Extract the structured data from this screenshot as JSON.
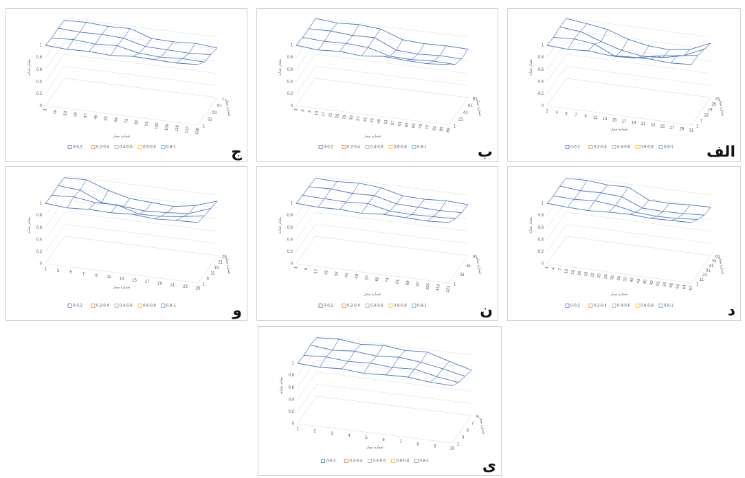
{
  "chart_data": [
    {
      "type": "surface",
      "label": "الف",
      "x_label": "شماره بیمار",
      "y_label": "مقدار تشابه",
      "z_label": "شماره بیمار",
      "legend": [
        "0-0.2",
        "0.2-0.4",
        "0.4-0.6",
        "0.6-0.8",
        "0.8-1"
      ],
      "legend_colors": [
        "#4472c4",
        "#ed7d31",
        "#a5a5a5",
        "#ffc000",
        "#5b9bd5"
      ],
      "color": "#4472c4",
      "ylim": [
        0,
        1
      ],
      "yticks": [
        0,
        0.2,
        0.4,
        0.6,
        0.8,
        1
      ],
      "xticks": [
        1,
        3,
        5,
        7,
        9,
        11,
        13,
        15,
        17,
        19,
        21,
        23,
        25,
        27,
        29,
        31
      ],
      "zticks": [
        1,
        7,
        13,
        19,
        25,
        31
      ],
      "surface": [
        [
          1,
          0.98,
          1,
          0.97,
          0.99,
          1,
          0.98,
          1
        ],
        [
          0.98,
          1,
          0.96,
          0.8,
          0.82,
          0.9,
          0.95,
          1
        ],
        [
          1,
          0.97,
          0.85,
          0.75,
          0.7,
          0.72,
          0.8,
          0.95
        ],
        [
          0.99,
          0.95,
          0.9,
          0.78,
          0.72,
          0.7,
          0.75,
          0.9
        ]
      ]
    },
    {
      "type": "surface",
      "label": "ب",
      "x_label": "شماره بیمار",
      "y_label": "مقدار تشابه",
      "z_label": "شماره بیمار",
      "legend": [
        "0-0.2",
        "0.2-0.4",
        "0.4-0.6",
        "0.6-0.8",
        "0.8-1"
      ],
      "legend_colors": [
        "#4472c4",
        "#ed7d31",
        "#a5a5a5",
        "#ffc000",
        "#5b9bd5"
      ],
      "color": "#4472c4",
      "ylim": [
        0,
        1
      ],
      "yticks": [
        0,
        0.2,
        0.4,
        0.6,
        0.8,
        1
      ],
      "xticks": [
        1,
        5,
        9,
        13,
        17,
        21,
        25,
        29,
        33,
        37,
        41,
        45,
        49,
        53,
        57,
        61,
        65,
        69,
        73,
        77,
        81,
        85,
        89
      ],
      "zticks": [
        1,
        21,
        41,
        61,
        81
      ],
      "surface": [
        [
          1,
          0.97,
          0.99,
          0.96,
          1,
          0.98,
          0.97,
          1
        ],
        [
          0.98,
          0.96,
          0.97,
          0.95,
          0.85,
          0.84,
          0.86,
          0.85
        ],
        [
          0.97,
          0.98,
          0.95,
          0.96,
          0.8,
          0.78,
          0.8,
          0.79
        ],
        [
          0.99,
          0.96,
          0.98,
          0.95,
          0.82,
          0.8,
          0.81,
          0.8
        ]
      ]
    },
    {
      "type": "surface",
      "label": "ج",
      "x_label": "شماره بیمار",
      "y_label": "مقدار تشابه",
      "z_label": "شماره بیمار",
      "legend": [
        "0-0.2",
        "0.2-0.4",
        "0.4-0.6",
        "0.6-0.8",
        "0.8-1"
      ],
      "legend_colors": [
        "#4472c4",
        "#ed7d31",
        "#a5a5a5",
        "#ffc000",
        "#5b9bd5"
      ],
      "color": "#4472c4",
      "ylim": [
        0,
        1
      ],
      "yticks": [
        0,
        0.2,
        0.4,
        0.6,
        0.8,
        1
      ],
      "xticks": [
        1,
        10,
        19,
        28,
        37,
        46,
        55,
        64,
        73,
        82,
        91,
        100,
        109,
        118,
        127,
        136
      ],
      "zticks": [
        1,
        31,
        61,
        91,
        {
          "value": 121,
          "label": "1..."
        }
      ],
      "surface": [
        [
          1,
          0.98,
          0.99,
          0.97,
          1,
          0.99,
          0.98,
          1
        ],
        [
          0.97,
          0.99,
          0.96,
          0.98,
          0.9,
          0.88,
          0.9,
          0.89
        ],
        [
          0.98,
          0.96,
          0.97,
          0.95,
          0.86,
          0.85,
          0.84,
          0.86
        ],
        [
          0.96,
          0.97,
          0.95,
          0.96,
          0.84,
          0.83,
          0.85,
          0.82
        ]
      ]
    },
    {
      "type": "surface",
      "label": "د",
      "x_label": "شماره بیمار",
      "y_label": "مقدار تشابه",
      "z_label": "شماره بیمار",
      "legend": [
        "0-0.2",
        "0.2-0.4",
        "0.4-0.6",
        "0.6-0.8",
        "0.8-1"
      ],
      "legend_colors": [
        "#4472c4",
        "#ed7d31",
        "#a5a5a5",
        "#ffc000",
        "#5b9bd5"
      ],
      "color": "#4472c4",
      "ylim": [
        0,
        1
      ],
      "yticks": [
        0,
        0.2,
        0.4,
        0.6,
        0.8,
        1
      ],
      "xticks": [
        1,
        4,
        7,
        10,
        13,
        16,
        19,
        22,
        25,
        28,
        31,
        34,
        37,
        40,
        43,
        46,
        49,
        52,
        55,
        58,
        61,
        64,
        67
      ],
      "zticks": [
        1,
        11,
        21,
        31,
        41,
        51,
        61
      ],
      "surface": [
        [
          1,
          0.98,
          0.97,
          0.99,
          1,
          0.98,
          0.99,
          1
        ],
        [
          0.97,
          0.96,
          0.98,
          0.95,
          0.88,
          0.86,
          0.87,
          0.9
        ],
        [
          0.98,
          0.95,
          0.96,
          0.94,
          0.8,
          0.79,
          0.8,
          0.82
        ],
        [
          0.96,
          0.97,
          0.94,
          0.95,
          0.78,
          0.77,
          0.79,
          0.8
        ]
      ]
    },
    {
      "type": "surface",
      "label": "ن",
      "x_label": "شماره بیمار",
      "y_label": "مقدار تشابه",
      "z_label": "شماره بیمار",
      "legend": [
        "0-0.2",
        "0.2-0.4",
        "0.4-0.6",
        "0.6-0.8",
        "0.8-1"
      ],
      "legend_colors": [
        "#4472c4",
        "#ed7d31",
        "#a5a5a5",
        "#ffc000",
        "#5b9bd5"
      ],
      "color": "#4472c4",
      "ylim": [
        0,
        1
      ],
      "yticks": [
        0,
        0.2,
        0.4,
        0.6,
        0.8,
        1
      ],
      "xticks": [
        1,
        9,
        17,
        25,
        33,
        41,
        49,
        57,
        65,
        73,
        81,
        89,
        97,
        105,
        113,
        121
      ],
      "zticks": [
        1,
        31,
        61,
        91
      ],
      "surface": [
        [
          1,
          0.98,
          0.99,
          0.97,
          1,
          0.99,
          0.98,
          1
        ],
        [
          0.98,
          0.97,
          0.96,
          0.98,
          0.9,
          0.89,
          0.9,
          0.91
        ],
        [
          0.97,
          0.98,
          0.95,
          0.96,
          0.87,
          0.86,
          0.85,
          0.86
        ],
        [
          0.96,
          0.95,
          0.97,
          0.94,
          0.85,
          0.84,
          0.86,
          0.84
        ]
      ]
    },
    {
      "type": "surface",
      "label": "و",
      "x_label": "شماره بیمار",
      "y_label": "مقدار تشابه",
      "z_label": "شماره بیمار",
      "legend": [
        "0-0.2",
        "0.2-0.4",
        "0.4-0.6",
        "0.6-0.8",
        "0.8-1"
      ],
      "legend_colors": [
        "#4472c4",
        "#ed7d31",
        "#a5a5a5",
        "#ffc000",
        "#5b9bd5"
      ],
      "color": "#4472c4",
      "ylim": [
        0,
        1
      ],
      "yticks": [
        0,
        0.2,
        0.4,
        0.6,
        0.8,
        1
      ],
      "xticks": [
        1,
        3,
        5,
        7,
        9,
        11,
        13,
        15,
        17,
        19,
        21,
        23,
        25
      ],
      "zticks": [
        1,
        6,
        11,
        16,
        21,
        26
      ],
      "surface": [
        [
          1,
          0.97,
          0.99,
          0.98,
          1,
          0.97,
          0.99,
          1
        ],
        [
          0.98,
          1,
          0.95,
          0.96,
          0.85,
          0.86,
          0.9,
          0.96
        ],
        [
          0.99,
          0.96,
          0.8,
          0.78,
          0.75,
          0.77,
          0.8,
          0.93
        ],
        [
          0.97,
          0.98,
          0.85,
          0.76,
          0.74,
          0.72,
          0.78,
          0.9
        ]
      ]
    },
    {
      "type": "surface",
      "label": "ی",
      "x_label": "شماره بیمار",
      "y_label": "مقدار تشابه",
      "z_label": "شماره بیمار",
      "legend": [
        "0-0.2",
        "0.2-0.4",
        "0.4-0.6",
        "0.6-0.8",
        "0.8-1"
      ],
      "legend_colors": [
        "#4472c4",
        "#ed7d31",
        "#a5a5a5",
        "#ffc000",
        "#5b9bd5"
      ],
      "color": "#4472c4",
      "ylim": [
        0,
        1
      ],
      "yticks": [
        0,
        0.2,
        0.4,
        0.6,
        0.8,
        1
      ],
      "xticks": [
        1,
        2,
        3,
        4,
        5,
        6,
        7,
        8,
        9,
        10
      ],
      "zticks": [
        1,
        3,
        5,
        7,
        9
      ],
      "surface": [
        [
          1,
          0.98,
          1,
          0.97,
          0.99,
          1,
          0.96,
          0.95
        ],
        [
          0.98,
          1,
          0.97,
          0.99,
          0.96,
          0.98,
          0.9,
          0.85
        ],
        [
          1,
          0.96,
          0.99,
          0.95,
          0.98,
          0.94,
          0.88,
          0.8
        ],
        [
          0.97,
          0.99,
          0.95,
          0.98,
          0.94,
          0.96,
          0.85,
          0.75
        ]
      ]
    }
  ]
}
